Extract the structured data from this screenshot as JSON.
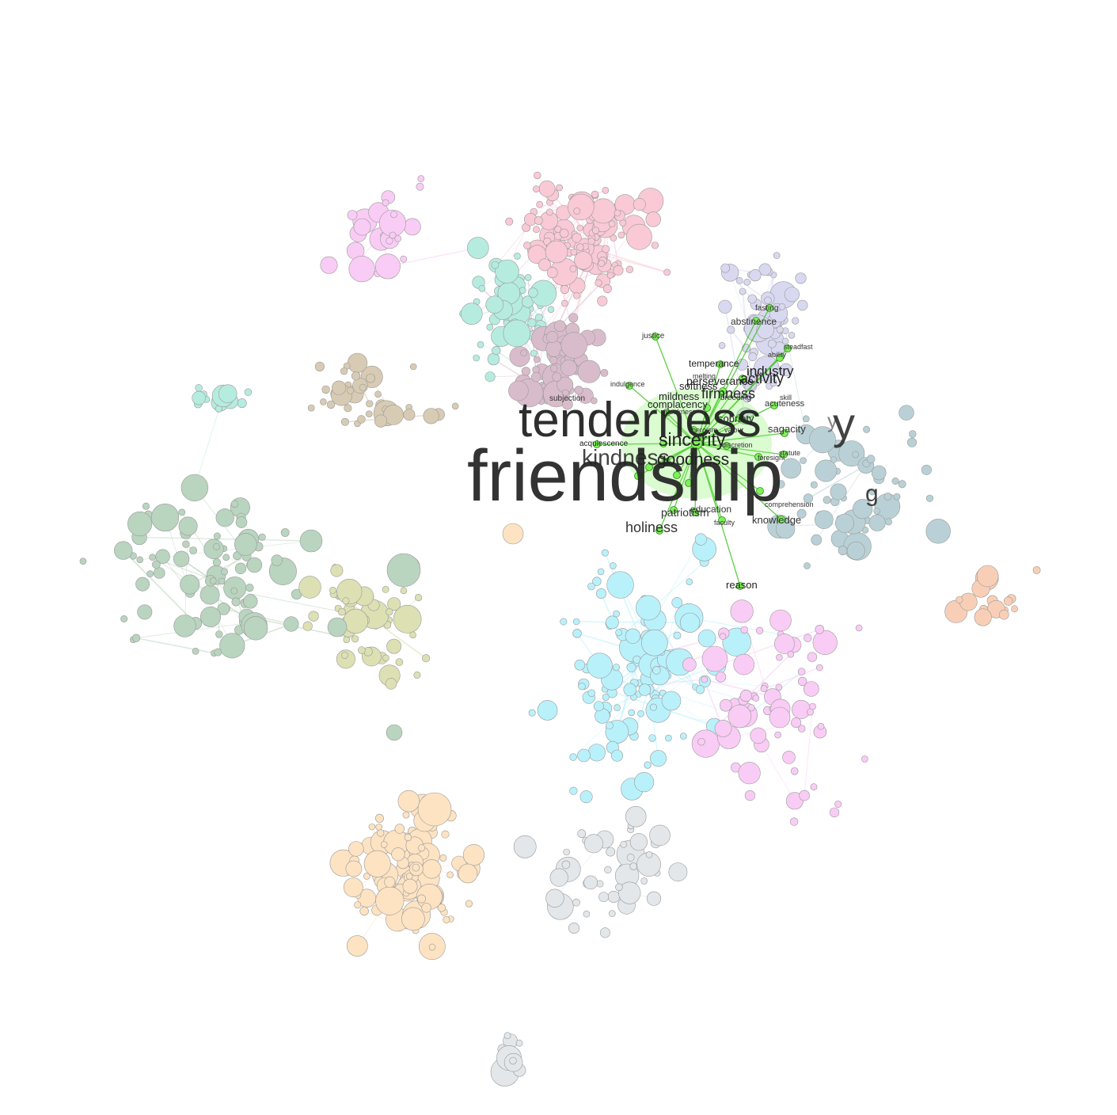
{
  "graph": {
    "labels": [
      "friendship",
      "tenderness",
      "sincerity",
      "goodness",
      "activity",
      "firmness",
      "holiness",
      "knowledge",
      "reason",
      "abstinence",
      "fasting",
      "justice",
      "temperance",
      "patriotism",
      "complacency",
      "sagacity",
      "sobriety",
      "indulgence",
      "subjection",
      "acquiescence",
      "acuteness",
      "steadfast",
      "faculty",
      "statute",
      "foresight",
      "discretion",
      "valour",
      "heroism",
      "industry",
      "ability",
      "meekness",
      "kindness",
      "mildness",
      "breeding",
      "skill",
      "education",
      "melting",
      "softness",
      "perseverance",
      "comprehension"
    ],
    "colors": {
      "highlight": "#7ef05a",
      "highlight_edge": "#39c21a",
      "label_dark": "#222222",
      "pink": "#f9c9d6",
      "mint": "#b6ece0",
      "mauve": "#d9bccb",
      "lavender": "#d8d8f0",
      "steel": "#b9d1d6",
      "sage": "#b9d4bf",
      "olive": "#dde0b3",
      "cyan": "#b9f1fb",
      "peach": "#fde3c2",
      "orchid": "#f9ccf5",
      "tan": "#d8cbb3",
      "gray": "#e3e7ea",
      "salmon": "#f8cfb6"
    }
  }
}
